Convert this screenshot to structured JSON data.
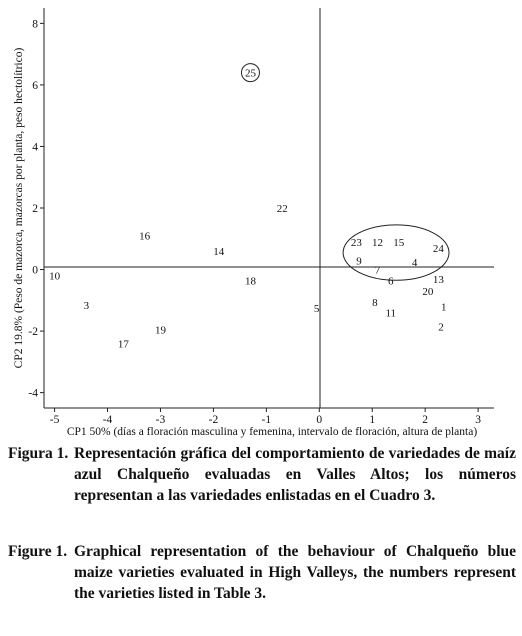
{
  "chart_data": {
    "type": "scatter",
    "xlabel": "CP1 50% (días a floración masculina y femenina, intervalo de floración, altura de planta)",
    "ylabel": "CP2 19.8% (Peso de mazorca, mazorcas por planta, peso hectolítrico)",
    "xlim": [
      -5.2,
      3.3
    ],
    "ylim": [
      -4.5,
      8.5
    ],
    "x_ticks": [
      -5,
      -4,
      -3,
      -2,
      -1,
      0,
      1,
      2,
      3
    ],
    "y_ticks": [
      -4,
      -2,
      0,
      2,
      4,
      6,
      8
    ],
    "grid": false,
    "points": [
      {
        "label": "25",
        "x": -1.3,
        "y": 6.4,
        "circled": true
      },
      {
        "label": "22",
        "x": -0.7,
        "y": 2.0
      },
      {
        "label": "16",
        "x": -3.3,
        "y": 1.1
      },
      {
        "label": "14",
        "x": -1.9,
        "y": 0.6
      },
      {
        "label": "18",
        "x": -1.3,
        "y": -0.35
      },
      {
        "label": "10",
        "x": -5.0,
        "y": -0.2
      },
      {
        "label": "3",
        "x": -4.4,
        "y": -1.15
      },
      {
        "label": "19",
        "x": -3.0,
        "y": -1.95
      },
      {
        "label": "17",
        "x": -3.7,
        "y": -2.4
      },
      {
        "label": "5",
        "x": -0.05,
        "y": -1.25
      },
      {
        "label": "23",
        "x": 0.7,
        "y": 0.9
      },
      {
        "label": "12",
        "x": 1.1,
        "y": 0.9
      },
      {
        "label": "15",
        "x": 1.5,
        "y": 0.9
      },
      {
        "label": "24",
        "x": 2.25,
        "y": 0.7
      },
      {
        "label": "9",
        "x": 0.75,
        "y": 0.3
      },
      {
        "label": "7",
        "x": 1.1,
        "y": 0.0
      },
      {
        "label": "6",
        "x": 1.35,
        "y": -0.35
      },
      {
        "label": "4",
        "x": 1.8,
        "y": 0.25
      },
      {
        "label": "13",
        "x": 2.25,
        "y": -0.3
      },
      {
        "label": "20",
        "x": 2.05,
        "y": -0.7
      },
      {
        "label": "8",
        "x": 1.05,
        "y": -1.05
      },
      {
        "label": "11",
        "x": 1.35,
        "y": -1.4
      },
      {
        "label": "1",
        "x": 2.35,
        "y": -1.2
      },
      {
        "label": "2",
        "x": 2.3,
        "y": -1.85
      }
    ],
    "group_ellipse": {
      "cx": 1.45,
      "cy": 0.55,
      "rx": 1.0,
      "ry": 0.9
    }
  },
  "captions": {
    "es_label": "Figura 1.",
    "es_text": "Representación gráfica del comportamiento de variedades de maíz azul Chalqueño evaluadas en Valles Altos; los números representan a las variedades enlistadas en el Cuadro 3.",
    "en_label": "Figure 1.",
    "en_text": "Graphical representation of the behaviour of Chalqueño blue maize varieties evaluated in High Valleys, the numbers represent the varieties listed in Table 3."
  }
}
